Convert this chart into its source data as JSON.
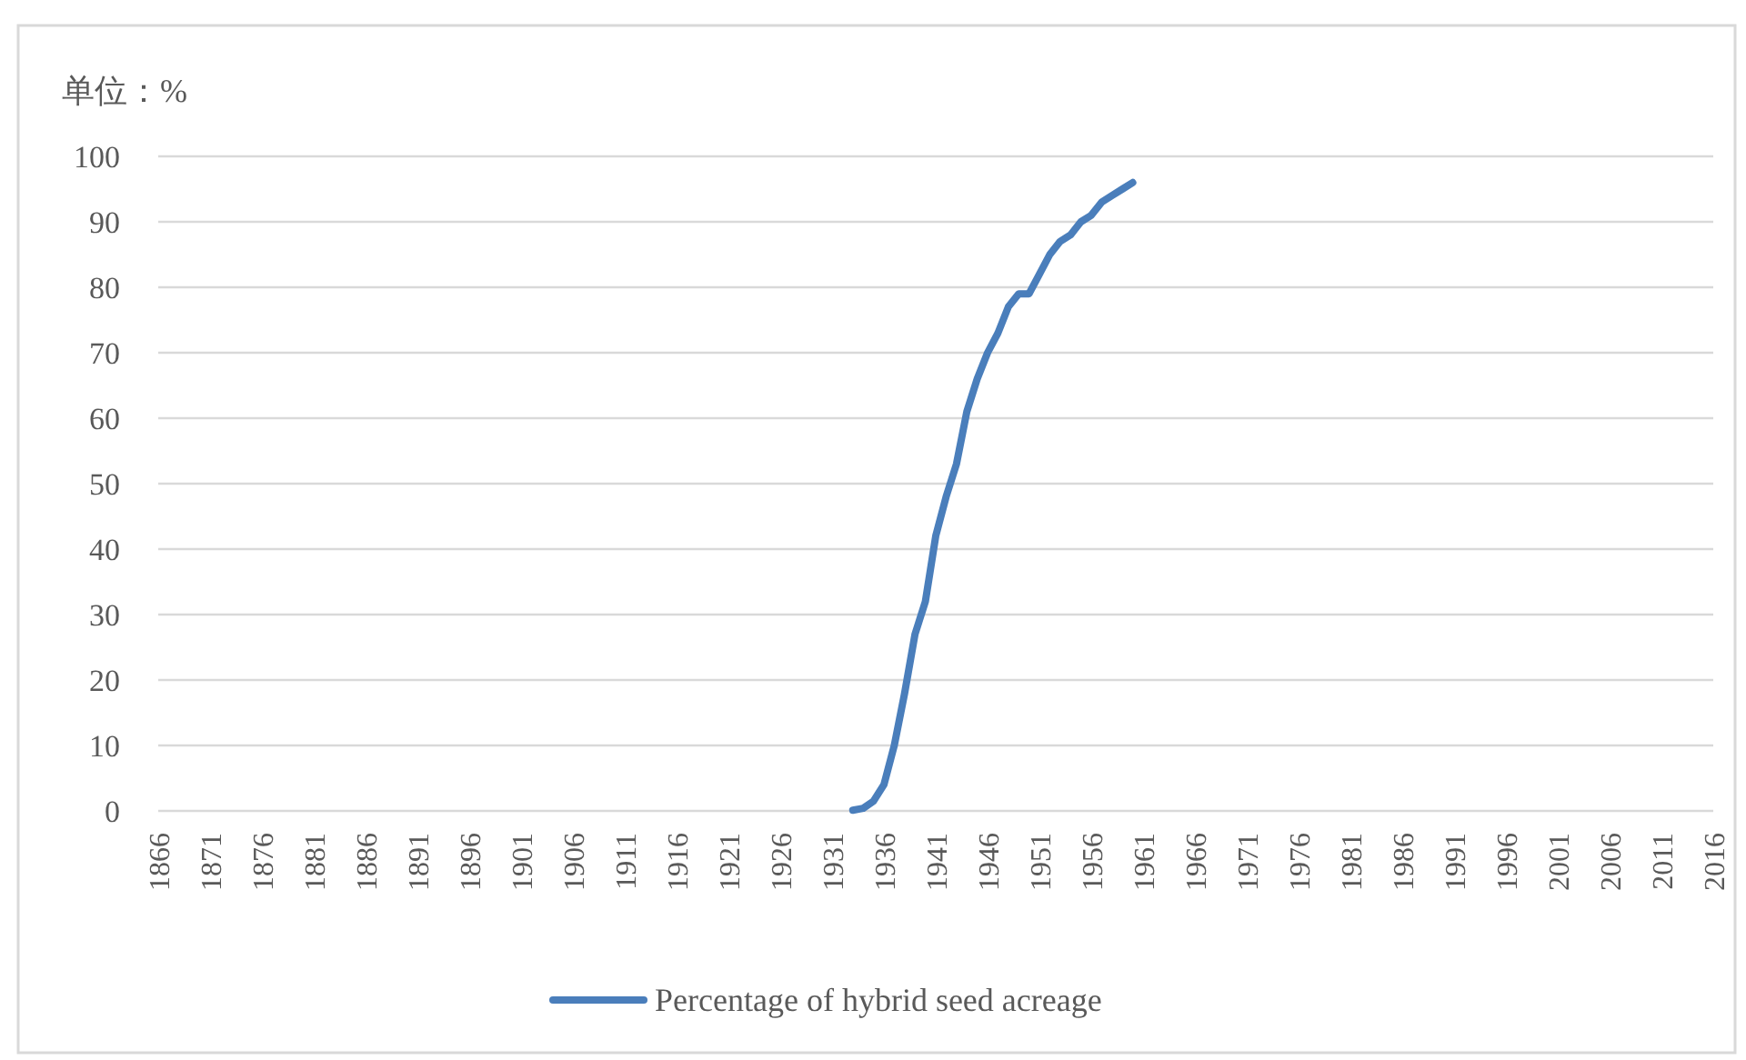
{
  "chart_data": {
    "type": "line",
    "ylabel": "单位：%",
    "x": [
      1933,
      1934,
      1935,
      1936,
      1937,
      1938,
      1939,
      1940,
      1941,
      1942,
      1943,
      1944,
      1945,
      1946,
      1947,
      1948,
      1949,
      1950,
      1951,
      1952,
      1953,
      1954,
      1955,
      1956,
      1957,
      1958,
      1959,
      1960
    ],
    "series": [
      {
        "name": "Percentage of hybrid seed acreage",
        "color": "#4a7ebb",
        "values": [
          0.1,
          0.4,
          1.5,
          4,
          10,
          18,
          27,
          32,
          42,
          48,
          53,
          61,
          66,
          70,
          73,
          77,
          79,
          79,
          82,
          85,
          87,
          88,
          90,
          91,
          93,
          94,
          95,
          96
        ]
      }
    ],
    "xlim": [
      1866,
      2016
    ],
    "xticks": [
      1866,
      1871,
      1876,
      1881,
      1886,
      1891,
      1896,
      1901,
      1906,
      1911,
      1916,
      1921,
      1926,
      1931,
      1936,
      1941,
      1946,
      1951,
      1956,
      1961,
      1966,
      1971,
      1976,
      1981,
      1986,
      1991,
      1996,
      2001,
      2006,
      2011,
      2016
    ],
    "ylim": [
      0,
      100
    ],
    "yticks": [
      0,
      10,
      20,
      30,
      40,
      50,
      60,
      70,
      80,
      90,
      100
    ],
    "grid": "y",
    "legend": "bottom"
  }
}
